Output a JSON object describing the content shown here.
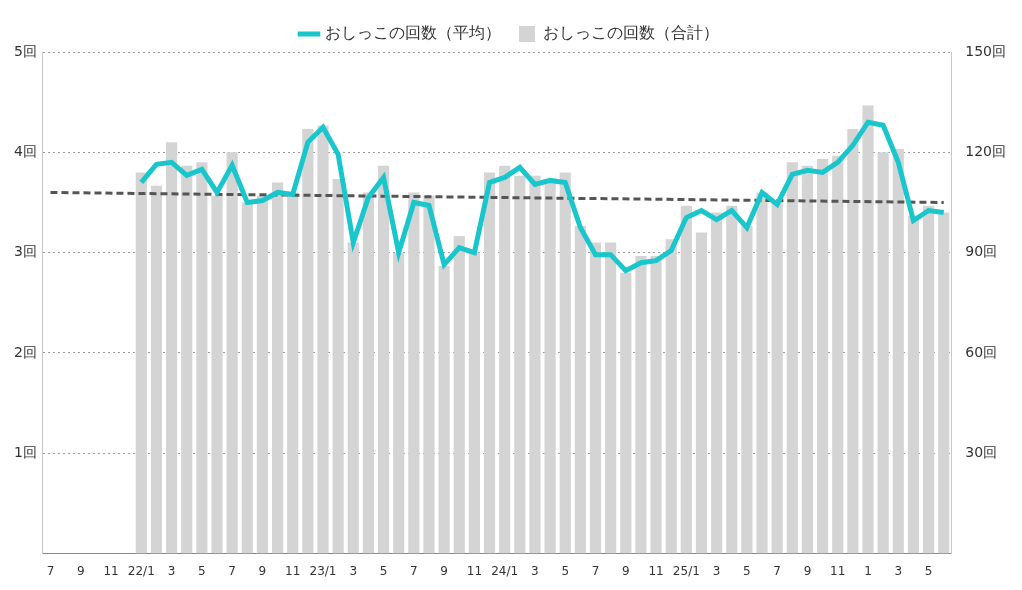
{
  "chart_data": {
    "type": "bar",
    "categories": [
      "7",
      null,
      "9",
      null,
      "11",
      null,
      "22/1",
      null,
      "3",
      null,
      "5",
      null,
      "7",
      null,
      "9",
      null,
      "11",
      null,
      "23/1",
      null,
      "3",
      null,
      "5",
      null,
      "7",
      null,
      "9",
      null,
      "11",
      null,
      "24/1",
      null,
      "3",
      null,
      "5",
      null,
      "7",
      null,
      "9",
      null,
      "11",
      null,
      "25/1",
      null,
      "3",
      null,
      "5",
      null,
      "7",
      null,
      "9",
      null,
      "11",
      null,
      "1",
      null,
      "3",
      null,
      "5",
      null
    ],
    "series": [
      {
        "name": "おしっこの回数（平均）",
        "type": "line",
        "color": "#19c6cc",
        "marker": "none",
        "line_style": "solid",
        "axis": "y",
        "values": [
          null,
          null,
          null,
          null,
          null,
          null,
          3.7,
          3.88,
          3.9,
          3.77,
          3.83,
          3.6,
          3.87,
          3.5,
          3.52,
          3.6,
          3.58,
          4.1,
          4.25,
          3.98,
          3.1,
          3.55,
          3.75,
          3.0,
          3.5,
          3.47,
          2.88,
          3.05,
          3.0,
          3.7,
          3.75,
          3.85,
          3.68,
          3.72,
          3.7,
          3.25,
          2.98,
          2.98,
          2.82,
          2.9,
          2.92,
          3.02,
          3.35,
          3.42,
          3.33,
          3.42,
          3.25,
          3.6,
          3.48,
          3.78,
          3.82,
          3.8,
          3.9,
          4.07,
          4.3,
          4.27,
          3.9,
          3.32,
          3.42,
          3.4
        ]
      },
      {
        "name": "おしっこの回数（合計）",
        "type": "bar",
        "color": "#d4d4d4",
        "axis": "y2",
        "values": [
          null,
          null,
          null,
          null,
          null,
          null,
          114,
          110,
          123,
          116,
          117,
          107,
          120,
          105,
          107,
          111,
          108,
          127,
          128,
          112,
          93,
          108,
          116,
          90,
          108,
          107,
          86,
          95,
          90,
          114,
          116,
          113,
          113,
          112,
          114,
          98,
          93,
          93,
          84,
          89,
          89,
          94,
          104,
          96,
          102,
          104,
          98,
          108,
          105,
          117,
          116,
          118,
          119,
          127,
          134,
          120,
          121,
          101,
          104,
          102
        ]
      },
      {
        "type": "line",
        "color": "#555555",
        "marker": "none",
        "line_style": "dashed",
        "axis": "y",
        "values": [
          3.6,
          null,
          null,
          null,
          null,
          null,
          null,
          null,
          null,
          null,
          null,
          null,
          null,
          null,
          null,
          null,
          null,
          null,
          null,
          null,
          null,
          null,
          null,
          null,
          null,
          null,
          null,
          null,
          null,
          null,
          null,
          null,
          null,
          null,
          null,
          null,
          null,
          null,
          null,
          null,
          null,
          null,
          null,
          null,
          null,
          null,
          null,
          null,
          null,
          null,
          null,
          null,
          null,
          null,
          null,
          null,
          null,
          null,
          null,
          3.5
        ]
      }
    ],
    "ylim": [
      0,
      5
    ],
    "yticks": [
      {
        "value": 1,
        "label": "1回"
      },
      {
        "value": 2,
        "label": "2回"
      },
      {
        "value": 3,
        "label": "3回"
      },
      {
        "value": 4,
        "label": "4回"
      },
      {
        "value": 5,
        "label": "5回"
      }
    ],
    "y2lim": [
      0,
      150
    ],
    "y2ticks": [
      {
        "value": 30,
        "label": "30回"
      },
      {
        "value": 60,
        "label": "60回"
      },
      {
        "value": 90,
        "label": "90回"
      },
      {
        "value": 120,
        "label": "120回"
      },
      {
        "value": 150,
        "label": "150回"
      }
    ],
    "grid": true,
    "legend": "top"
  }
}
